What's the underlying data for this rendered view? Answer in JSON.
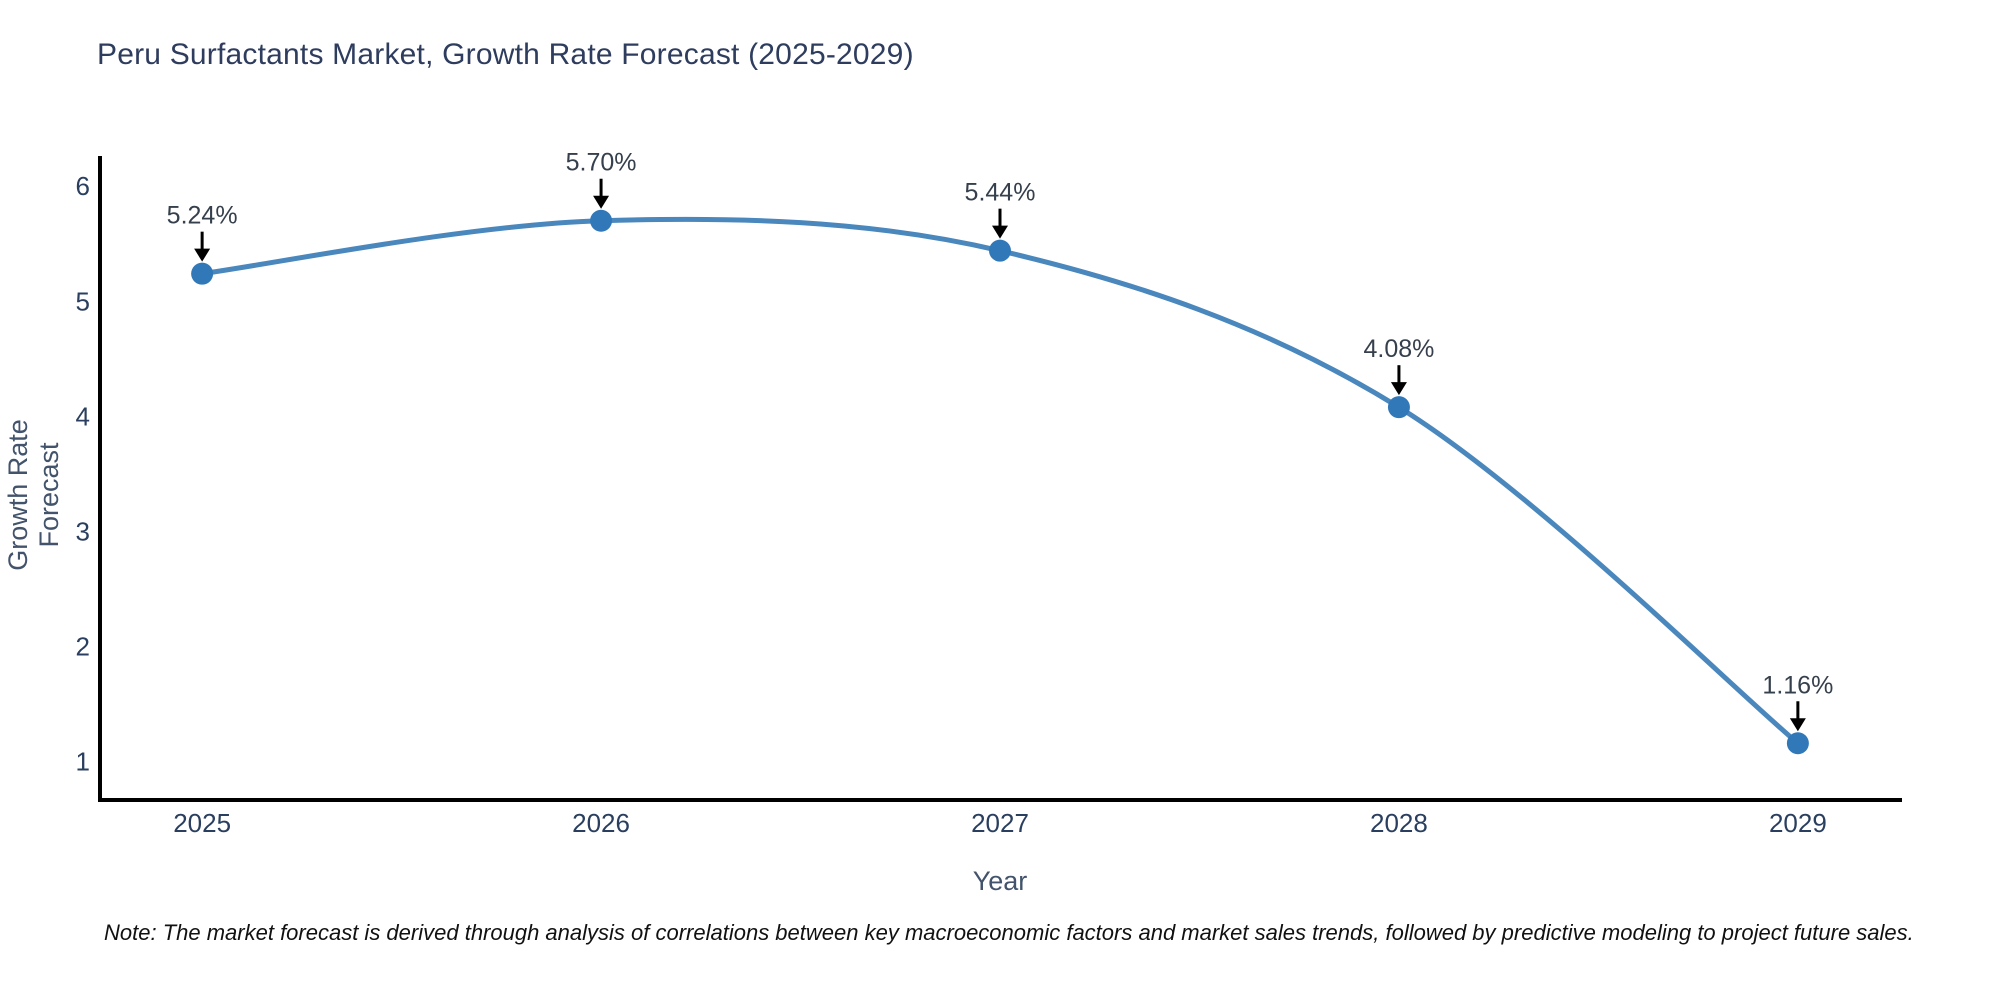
{
  "chart_data": {
    "type": "line",
    "title": "Peru Surfactants Market, Growth Rate Forecast (2025-2029)",
    "xlabel": "Year",
    "ylabel": "Growth Rate Forecast",
    "x": [
      2025,
      2026,
      2027,
      2028,
      2029
    ],
    "values": [
      5.24,
      5.7,
      5.44,
      4.08,
      1.16
    ],
    "point_labels": [
      "5.24%",
      "5.70%",
      "5.44%",
      "4.08%",
      "1.16%"
    ],
    "yticks": [
      1,
      2,
      3,
      4,
      5,
      6
    ],
    "xlim": [
      2024.744,
      2029.256
    ],
    "ylim": [
      0.667,
      6.245
    ],
    "grid": false,
    "legend": "none",
    "line_shape": "spline",
    "note": "Note: The market forecast is derived through analysis of correlations between key macroeconomic factors and market sales trends, followed by predictive modeling to project future sales.",
    "colors": {
      "line": "#4a87bd",
      "marker": "#3178b9",
      "axis_line": "#000000",
      "tick_text": "#2a3f5f",
      "annotation_text": "#36404d",
      "annotation_arrow": "#000000",
      "title_text": "#2e3c5e",
      "axis_label_text": "#42536b",
      "note_text": "#111111"
    }
  }
}
